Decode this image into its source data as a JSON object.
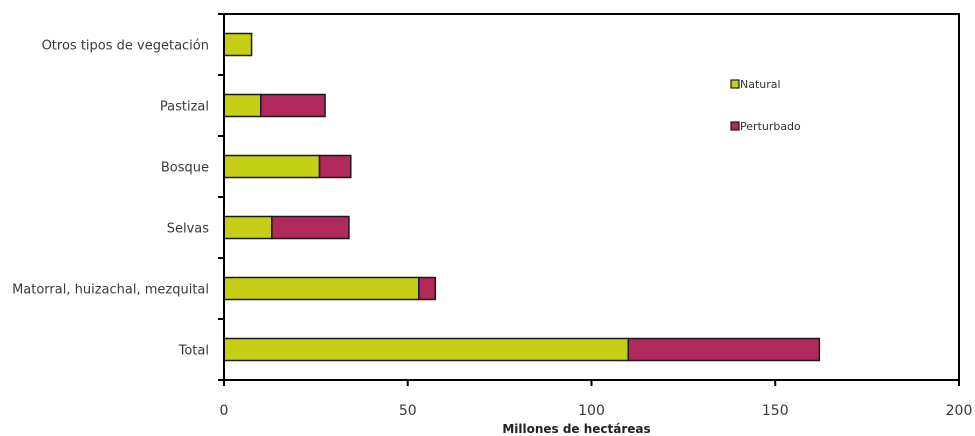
{
  "chart_data": {
    "type": "bar",
    "orientation": "horizontal",
    "stacked": true,
    "categories": [
      "Otros tipos de vegetación",
      "Pastizal",
      "Bosque",
      "Selvas",
      "Matorral, huizachal, mezquital",
      "Total"
    ],
    "series": [
      {
        "name": "Natural",
        "color": "#c4cf16",
        "values": [
          7.5,
          10,
          26,
          13,
          53,
          110
        ]
      },
      {
        "name": "Perturbado",
        "color": "#b1285c",
        "values": [
          0,
          17.5,
          8.5,
          21,
          4.5,
          52
        ]
      }
    ],
    "xlabel": "Millones de hectáreas",
    "xlim": [
      0,
      200
    ],
    "xticks": [
      0,
      50,
      100,
      150,
      200
    ],
    "grid": false,
    "legend_position": "right"
  }
}
